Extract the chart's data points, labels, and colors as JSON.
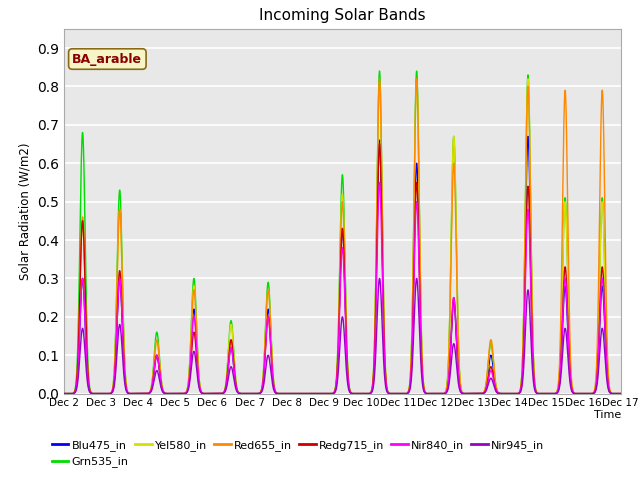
{
  "title": "Incoming Solar Bands",
  "xlabel": "Time",
  "ylabel": "Solar Radiation (W/m2)",
  "annotation": "BA_arable",
  "ylim": [
    0.0,
    0.95
  ],
  "plot_bg": "#e8e8e8",
  "fig_bg": "#ffffff",
  "grid_color": "white",
  "series_order": [
    "Blu475_in",
    "Grn535_in",
    "Yel580_in",
    "Red655_in",
    "Redg715_in",
    "Nir840_in",
    "Nir945_in"
  ],
  "series": {
    "Blu475_in": {
      "color": "#0000ff",
      "lw": 1.0
    },
    "Grn535_in": {
      "color": "#00dd00",
      "lw": 1.0
    },
    "Yel580_in": {
      "color": "#dddd00",
      "lw": 1.0
    },
    "Red655_in": {
      "color": "#ff8800",
      "lw": 1.0
    },
    "Redg715_in": {
      "color": "#cc0000",
      "lw": 1.0
    },
    "Nir840_in": {
      "color": "#ff00ff",
      "lw": 1.0
    },
    "Nir945_in": {
      "color": "#9900cc",
      "lw": 1.0
    }
  },
  "xtick_labels": [
    "Dec 2",
    "Dec 3",
    "Dec 4",
    "Dec 5",
    "Dec 6",
    "Dec 7",
    "Dec 8",
    "Dec 9",
    "Dec 10",
    "Dec 11",
    "Dec 12",
    "Dec 13",
    "Dec 14",
    "Dec 15",
    "Dec 16",
    "Dec 17"
  ],
  "xtick_positions": [
    2,
    3,
    4,
    5,
    6,
    7,
    8,
    9,
    10,
    11,
    12,
    13,
    14,
    15,
    16,
    17
  ],
  "ytick_vals": [
    0.0,
    0.1,
    0.2,
    0.3,
    0.4,
    0.5,
    0.6,
    0.7,
    0.8,
    0.9
  ],
  "day_peaks": {
    "2": [
      0.3,
      0.68,
      0.45,
      0.46,
      0.45,
      0.3,
      0.17
    ],
    "3": [
      0.3,
      0.53,
      0.48,
      0.48,
      0.32,
      0.3,
      0.18
    ],
    "4": [
      0.1,
      0.16,
      0.14,
      0.14,
      0.1,
      0.1,
      0.06
    ],
    "5": [
      0.22,
      0.3,
      0.28,
      0.27,
      0.16,
      0.2,
      0.11
    ],
    "6": [
      0.12,
      0.19,
      0.18,
      0.14,
      0.14,
      0.12,
      0.07
    ],
    "7": [
      0.22,
      0.29,
      0.27,
      0.27,
      0.2,
      0.2,
      0.1
    ],
    "8": [
      0.0,
      0.0,
      0.0,
      0.0,
      0.0,
      0.0,
      0.0
    ],
    "9": [
      0.43,
      0.57,
      0.52,
      0.5,
      0.43,
      0.38,
      0.2
    ],
    "10": [
      0.66,
      0.84,
      0.81,
      0.82,
      0.65,
      0.55,
      0.3
    ],
    "11": [
      0.6,
      0.84,
      0.81,
      0.82,
      0.55,
      0.5,
      0.3
    ],
    "12": [
      0.24,
      0.67,
      0.67,
      0.6,
      0.25,
      0.25,
      0.13
    ],
    "13": [
      0.1,
      0.13,
      0.14,
      0.14,
      0.07,
      0.06,
      0.04
    ],
    "14": [
      0.67,
      0.83,
      0.82,
      0.8,
      0.54,
      0.48,
      0.27
    ],
    "15": [
      0.28,
      0.51,
      0.5,
      0.79,
      0.33,
      0.3,
      0.17
    ],
    "16": [
      0.0,
      0.0,
      0.0,
      0.0,
      0.0,
      0.0,
      0.0
    ]
  }
}
